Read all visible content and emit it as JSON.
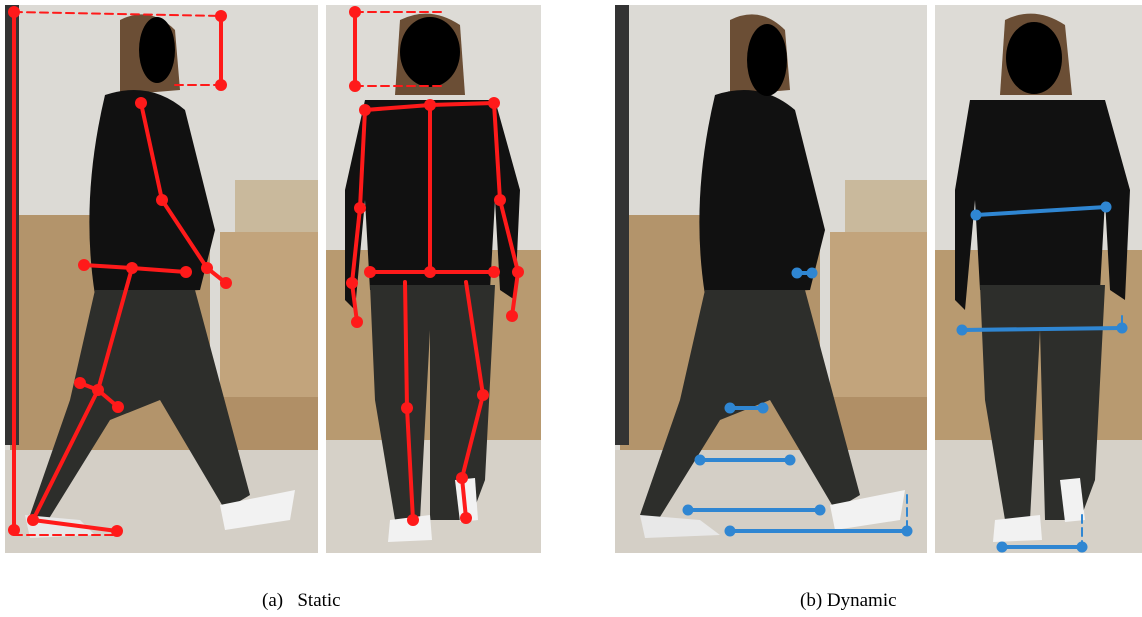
{
  "subfigures": [
    {
      "label": "(a)",
      "caption": "Static"
    },
    {
      "label": "(b)",
      "caption": "Dynamic"
    }
  ]
}
